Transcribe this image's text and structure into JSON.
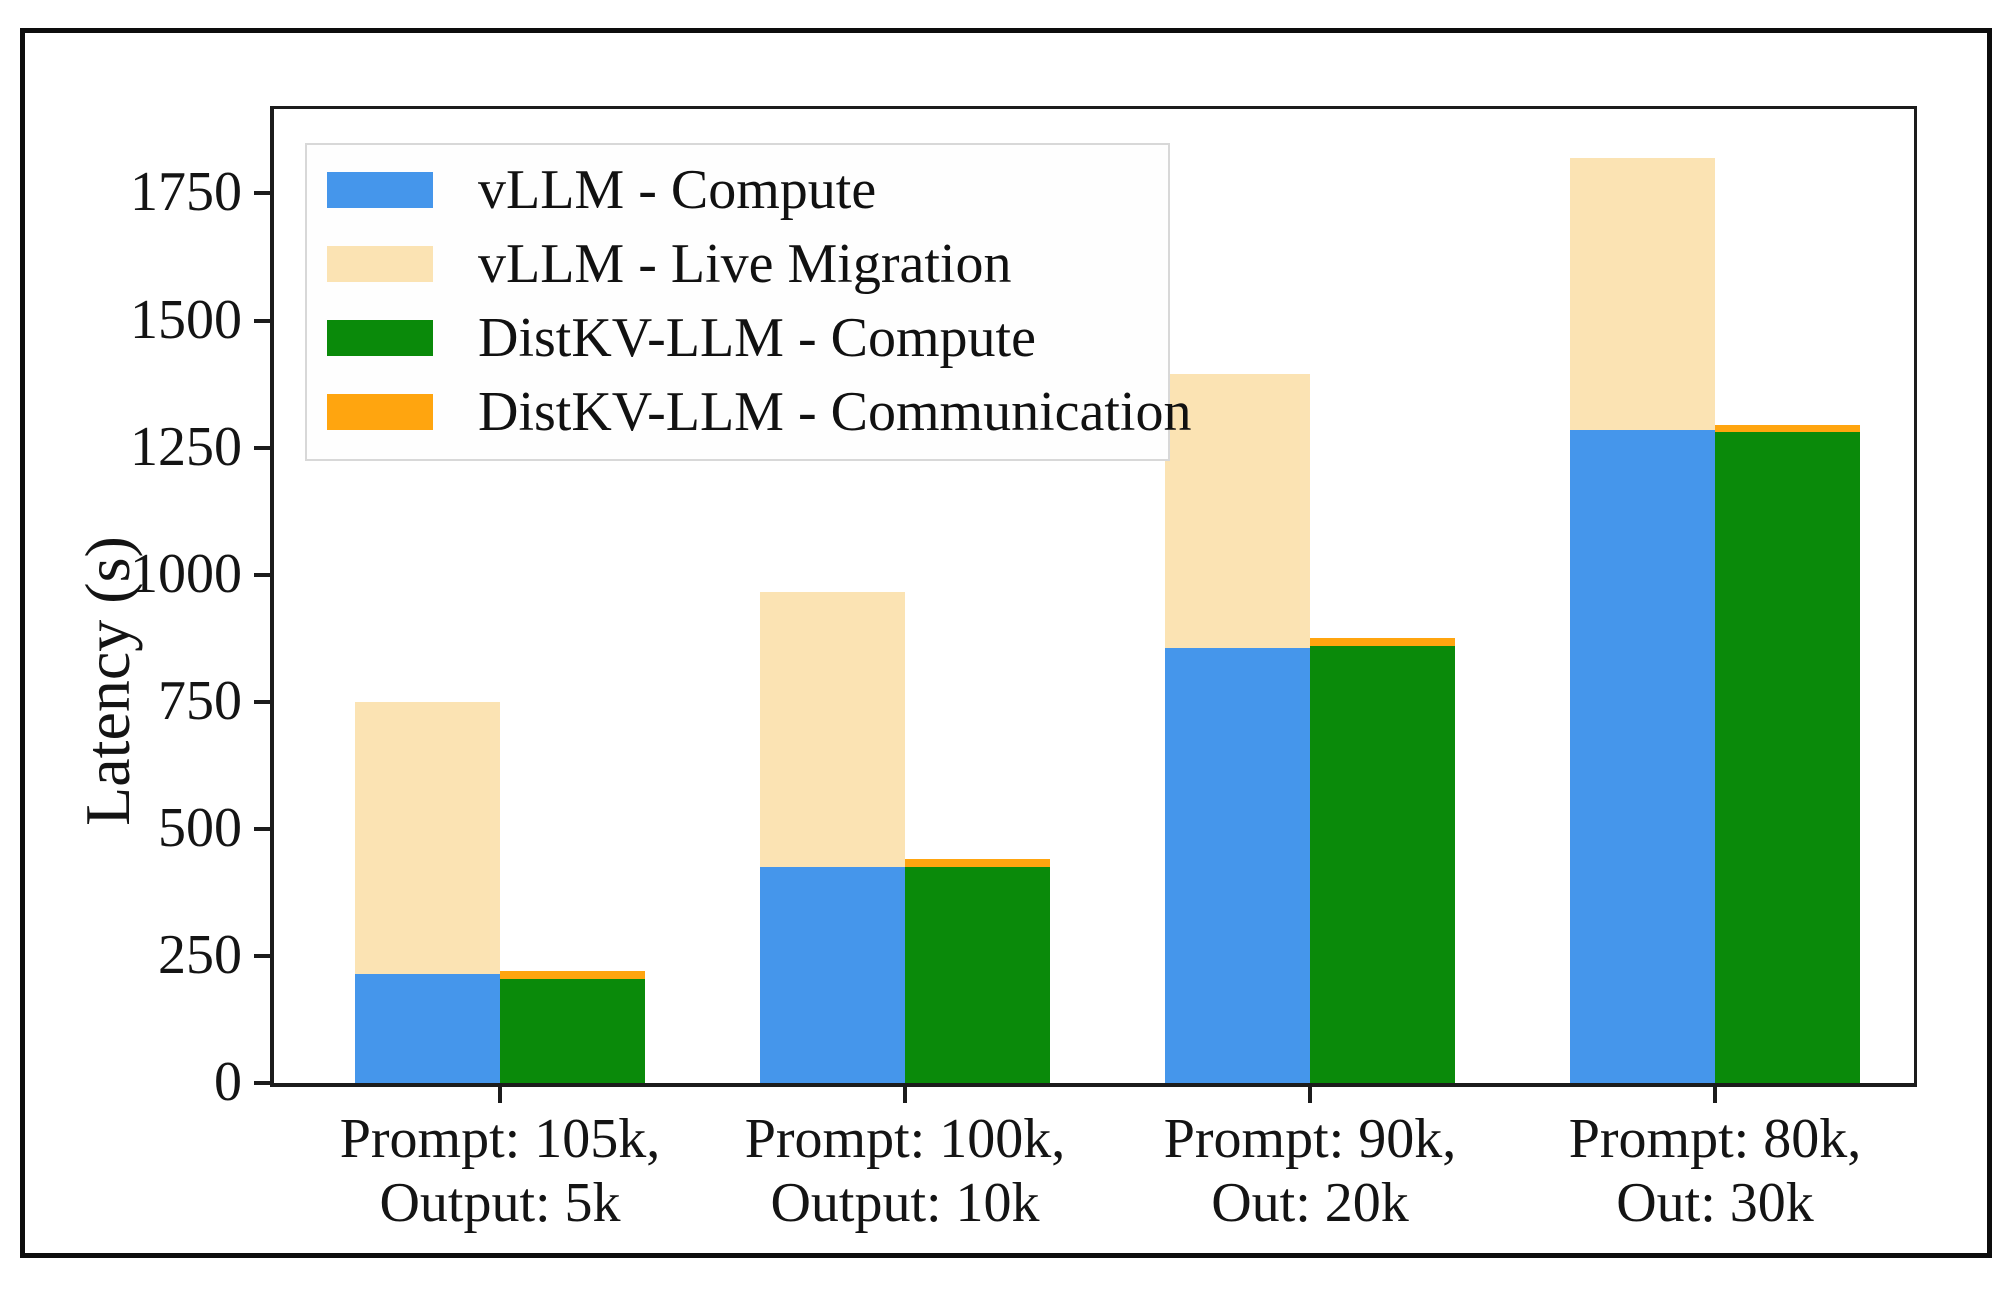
{
  "chart_data": {
    "type": "bar",
    "variant": "grouped-stacked",
    "title": "",
    "xlabel": "",
    "ylabel": "Latency (s)",
    "ylim": [
      0,
      1920
    ],
    "yticks": [
      0,
      250,
      500,
      750,
      1000,
      1250,
      1500,
      1750
    ],
    "grid": false,
    "legend_position": "upper left",
    "categories": [
      [
        "Prompt: 105k,",
        "Output: 5k"
      ],
      [
        "Prompt: 100k,",
        "Output: 10k"
      ],
      [
        "Prompt: 90k,",
        "Out: 20k"
      ],
      [
        "Prompt: 80k,",
        "Out: 30k"
      ]
    ],
    "series": [
      {
        "name": "vLLM - Compute",
        "color": "#4596EB",
        "stack": "vLLM",
        "values": [
          215,
          425,
          855,
          1285
        ]
      },
      {
        "name": "vLLM - Live Migration",
        "color": "#FBE3B3",
        "stack": "vLLM",
        "values": [
          535,
          540,
          540,
          535
        ]
      },
      {
        "name": "DistKV-LLM - Compute",
        "color": "#0A8A0A",
        "stack": "DistKV-LLM",
        "values": [
          205,
          425,
          860,
          1280
        ]
      },
      {
        "name": "DistKV-LLM - Communication",
        "color": "#FFA50F",
        "stack": "DistKV-LLM",
        "values": [
          15,
          15,
          15,
          15
        ]
      }
    ],
    "stack_totals": {
      "vLLM": [
        750,
        965,
        1395,
        1820
      ],
      "DistKV-LLM": [
        220,
        440,
        875,
        1295
      ]
    },
    "colors": {
      "axis": "#1c1c1c",
      "text": "#141414",
      "legend_border": "#d8d8d8",
      "figure_border": "#0d0d0d"
    }
  }
}
